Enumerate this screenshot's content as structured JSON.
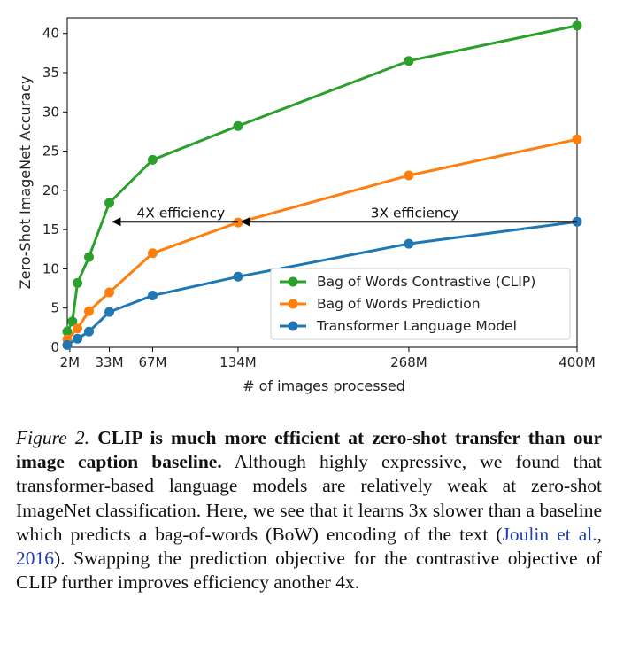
{
  "chart_data": {
    "type": "line",
    "title": "",
    "xlabel": "# of images processed",
    "ylabel": "Zero-Shot ImageNet Accuracy",
    "xlim": [
      0,
      400
    ],
    "ylim": [
      0,
      42
    ],
    "x_ticks": [
      {
        "value": 2,
        "label": "2M"
      },
      {
        "value": 33,
        "label": "33M"
      },
      {
        "value": 67,
        "label": "67M"
      },
      {
        "value": 134,
        "label": "134M"
      },
      {
        "value": 268,
        "label": "268M"
      },
      {
        "value": 400,
        "label": "400M"
      }
    ],
    "y_ticks": [
      0,
      5,
      10,
      15,
      20,
      25,
      30,
      35,
      40
    ],
    "legend_position": "lower-right",
    "series": [
      {
        "name": "Bag of Words Contrastive (CLIP)",
        "color": "#2ca02c",
        "points": [
          [
            0,
            2.0
          ],
          [
            4,
            3.3
          ],
          [
            8,
            8.2
          ],
          [
            17,
            11.5
          ],
          [
            33,
            18.4
          ],
          [
            67,
            23.9
          ],
          [
            134,
            28.2
          ],
          [
            268,
            36.5
          ],
          [
            400,
            41.0
          ]
        ]
      },
      {
        "name": "Bag of Words Prediction",
        "color": "#ff7f0e",
        "points": [
          [
            0,
            1.0
          ],
          [
            8,
            2.4
          ],
          [
            17,
            4.6
          ],
          [
            33,
            7.0
          ],
          [
            67,
            12.0
          ],
          [
            134,
            15.9
          ],
          [
            268,
            21.9
          ],
          [
            400,
            26.5
          ]
        ]
      },
      {
        "name": "Transformer Language Model",
        "color": "#1f77b4",
        "points": [
          [
            0,
            0.3
          ],
          [
            8,
            1.1
          ],
          [
            17,
            2.0
          ],
          [
            33,
            4.5
          ],
          [
            67,
            6.6
          ],
          [
            134,
            9.0
          ],
          [
            268,
            13.2
          ],
          [
            400,
            16.0
          ]
        ]
      }
    ],
    "annotations": [
      {
        "text": "4X efficiency",
        "arrow_from": [
          134,
          16
        ],
        "arrow_to": [
          33,
          16
        ]
      },
      {
        "text": "3X efficiency",
        "arrow_from": [
          400,
          16
        ],
        "arrow_to": [
          134,
          16
        ]
      }
    ]
  },
  "caption": {
    "figure_label": "Figure 2.",
    "bold_text": "CLIP is much more efficient at zero-shot transfer than our image caption baseline.",
    "text_before_citation": "Although highly expressive, we found that transformer-based language models are relatively weak at zero-shot ImageNet classification. Here, we see that it learns 3x slower than a baseline which predicts a bag-of-words (BoW) encoding of the text (",
    "citation_authors": "Joulin et al.",
    "citation_sep": ", ",
    "citation_year": "2016",
    "text_after_citation": "). Swapping the prediction objective for the contrastive objective of CLIP further improves efficiency another 4x."
  }
}
